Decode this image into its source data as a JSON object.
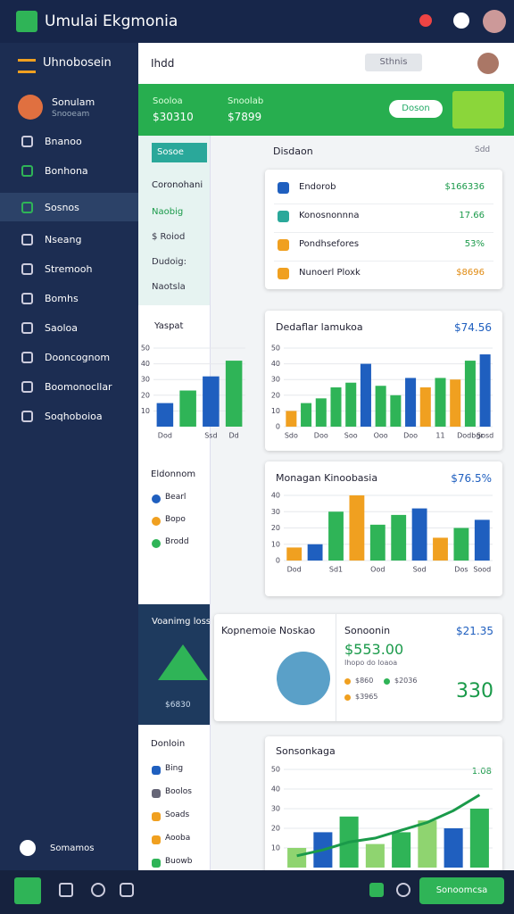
{
  "header": {
    "title": "Umulai Ekgmonia"
  },
  "sidebar": {
    "title": "Uhnobosein",
    "user": "Sonulam",
    "role": "Snooeam",
    "items": [
      "Bnanoo",
      "Bonhona",
      "Sosnos",
      "Nseang",
      "Stremooh",
      "Bomhs",
      "Saoloa",
      "Dooncognom",
      "Boomonocllar",
      "Soqhoboioa"
    ],
    "footer": "Somamos"
  },
  "topbar": {
    "crumb": "Ihdd",
    "button": "Sthnis"
  },
  "banner": {
    "label1": "Sooloa",
    "value1": "$30310",
    "label2": "Snoolab",
    "value2": "$7899",
    "button": "Doson"
  },
  "subpanel": {
    "tab": "Sosoe",
    "heading": "Coronohani",
    "links": [
      "Naobig",
      "$ Roiod",
      "Dudoig:",
      "Naotsla"
    ],
    "list_title": "Eldonnom",
    "list": [
      "Bearl",
      "Bopo",
      "Brodd"
    ],
    "promo": "Voanimg loss",
    "promo_value": "$6830",
    "bottom_title": "Donloin",
    "bottom_list": [
      "Bing",
      "Boolos",
      "Soads",
      "Aooba",
      "Buowb"
    ]
  },
  "dialog": {
    "title": "Disdaon",
    "close": "Sdd",
    "rows": [
      {
        "label": "Endorob",
        "value": "$166336"
      },
      {
        "label": "Konosnonnna",
        "value": "17.66"
      },
      {
        "label": "Pondhsefores",
        "value": "53%"
      },
      {
        "label": "Nunoerl Ploxk",
        "value": "$8696"
      }
    ]
  },
  "charts": [
    {
      "title": "Dedaflar lamukoa",
      "value": "$74.56",
      "ylim": [
        0,
        50
      ],
      "yticks": [
        0,
        10,
        20,
        30,
        40,
        50
      ],
      "categories": [
        "Sdo",
        null,
        "Doo",
        null,
        "Soo",
        null,
        "Ooo",
        null,
        "Doo",
        null,
        "11",
        null,
        "Dodbgr",
        "Sosd"
      ],
      "values": [
        10,
        15,
        18,
        25,
        28,
        40,
        26,
        20,
        31,
        25,
        31,
        30,
        42,
        46
      ],
      "colors": [
        "#f0a020",
        "#2fb457",
        "#2fb457",
        "#2fb457",
        "#2fb457",
        "#1f5fbf",
        "#2fb457",
        "#2fb457",
        "#1f5fbf",
        "#f0a020",
        "#2fb457",
        "#f0a020",
        "#2fb457",
        "#1f5fbf"
      ]
    },
    {
      "title": "Monagan Kinoobasia",
      "value": "$76.5%",
      "ylim": [
        0,
        40
      ],
      "yticks": [
        0,
        10,
        20,
        30,
        40
      ],
      "categories": [
        "Dod",
        null,
        "Sd1",
        null,
        "Ood",
        null,
        "Sod",
        null,
        "Dos",
        "Sood"
      ],
      "values": [
        8,
        10,
        30,
        40,
        22,
        28,
        32,
        14,
        20,
        25
      ],
      "colors": [
        "#f0a020",
        "#1f5fbf",
        "#2fb457",
        "#f0a020",
        "#2fb457",
        "#2fb457",
        "#1f5fbf",
        "#f0a020",
        "#2fb457",
        "#1f5fbf"
      ]
    },
    {
      "title": "Yaspat",
      "ylim": [
        0,
        50
      ],
      "yticks": [
        10,
        20,
        30,
        40,
        50
      ],
      "categories": [
        "Dod",
        null,
        "Ssd",
        "Dd"
      ],
      "values": [
        15,
        23,
        32,
        42
      ],
      "colors": [
        "#1f5fbf",
        "#2fb457",
        "#1f5fbf",
        "#2fb457"
      ]
    },
    {
      "title": "Sonsonkaga",
      "value": "1.08",
      "ylim": [
        0,
        50
      ],
      "yticks": [
        10,
        20,
        30,
        40,
        50
      ],
      "values": [
        10,
        18,
        26,
        12,
        18,
        24,
        20,
        30
      ],
      "colors": [
        "#8fd470",
        "#1f5fbf",
        "#2fb457",
        "#8fd470",
        "#2fb457",
        "#8fd470",
        "#1f5fbf",
        "#2fb457"
      ],
      "line": [
        6,
        9,
        13,
        15,
        19,
        23,
        29,
        37
      ]
    }
  ],
  "promo_card": {
    "title": "Kopnemoie Noskao",
    "label": "Sonoonin",
    "amount": "$553.00",
    "note": "Ihopo do loaoa",
    "value": "$21.35",
    "legend": [
      "$860",
      "$2036",
      "$3965"
    ],
    "big": "330"
  },
  "bottombar": {
    "button": "Sonoomcsa"
  }
}
